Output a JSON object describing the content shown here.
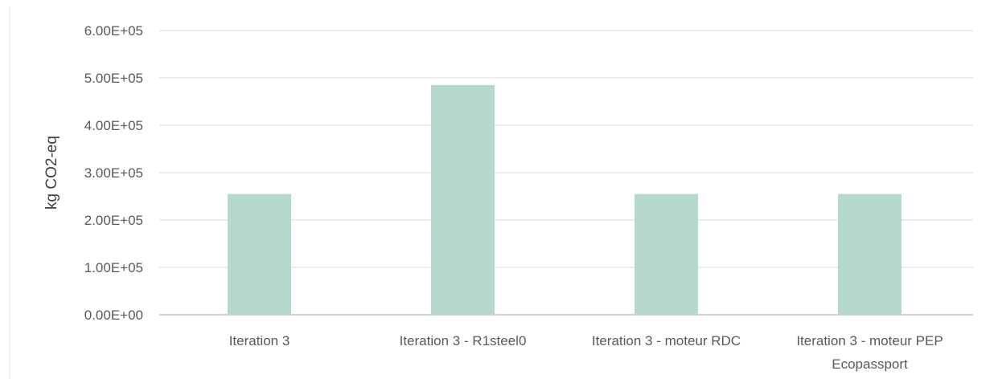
{
  "chart_data": {
    "type": "bar",
    "title": "",
    "xlabel": "",
    "ylabel": "kg CO2-eq",
    "ylim": [
      0,
      600000
    ],
    "y_ticks": [
      0,
      100000,
      200000,
      300000,
      400000,
      500000,
      600000
    ],
    "y_tick_labels": [
      "0.00E+00",
      "1.00E+05",
      "2.00E+05",
      "3.00E+05",
      "4.00E+05",
      "5.00E+05",
      "6.00E+05"
    ],
    "categories": [
      [
        "Iteration 3"
      ],
      [
        "Iteration 3 - R1steel0"
      ],
      [
        "Iteration 3 - moteur RDC"
      ],
      [
        "Iteration 3 - moteur PEP",
        "Ecopassport"
      ]
    ],
    "values": [
      255000,
      485000,
      255000,
      255000
    ],
    "grid": true,
    "legend": "none",
    "colors": {
      "bar": "#b5d9cf",
      "grid": "#d9d9d9",
      "axis": "#bfbfbf",
      "text": "#595959"
    }
  }
}
